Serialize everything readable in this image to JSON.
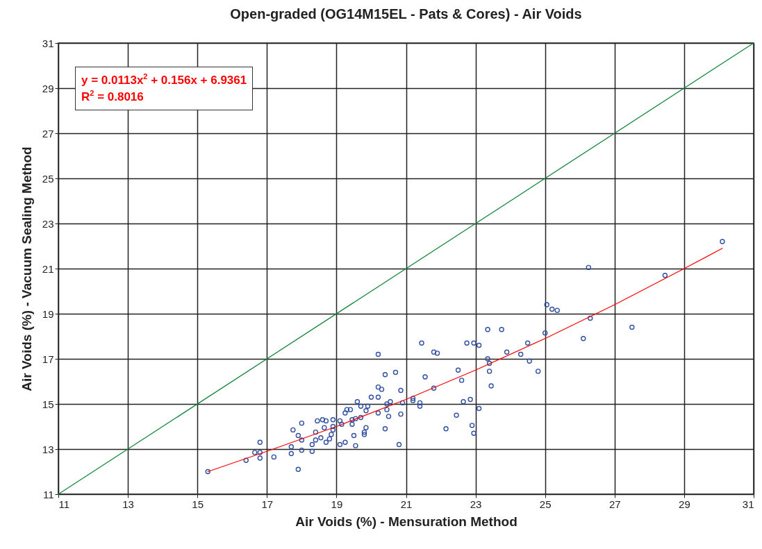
{
  "chart_data": {
    "type": "scatter",
    "title": "Open-graded (OG14M15EL - Pats & Cores) - Air Voids",
    "xlabel": "Air Voids (%) - Mensuration Method",
    "ylabel": "Air Voids (%) - Vacuum Sealing Method",
    "xlim": [
      11,
      31
    ],
    "xticks": [
      11,
      13,
      15,
      17,
      19,
      21,
      23,
      25,
      27,
      29,
      31
    ],
    "ylim": [
      11,
      31
    ],
    "yticks": [
      11,
      13,
      15,
      17,
      19,
      21,
      23,
      25,
      27,
      29,
      31
    ],
    "grid": true,
    "legend": false,
    "annotations": [
      "y = 0.0113x$^{2}$ + 0.156x + 6.9361",
      "R$^{2}$ = 0.8016"
    ],
    "series": [
      {
        "marker": "circle",
        "color": "#2f4fa0",
        "x": [
          15.3,
          16.4,
          16.65,
          16.8,
          16.8,
          16.8,
          17.2,
          17.7,
          17.7,
          17.9,
          17.75,
          18.0,
          17.9,
          18.0,
          18.0,
          18.3,
          18.3,
          18.4,
          18.4,
          18.45,
          18.55,
          18.6,
          18.65,
          18.7,
          18.7,
          18.8,
          18.85,
          18.9,
          18.9,
          18.9,
          19.1,
          19.1,
          19.15,
          19.25,
          19.25,
          19.3,
          19.4,
          19.45,
          19.5,
          19.55,
          19.45,
          19.55,
          19.6,
          19.7,
          19.7,
          19.85,
          19.8,
          19.8,
          19.85,
          19.9,
          20.0,
          20.2,
          20.2,
          20.2,
          20.2,
          20.3,
          20.4,
          20.45,
          20.45,
          20.55,
          20.7,
          20.85,
          20.85,
          20.9,
          20.8,
          20.4,
          20.5,
          21.2,
          21.2,
          21.4,
          21.4,
          21.45,
          21.8,
          21.9,
          21.55,
          21.8,
          22.15,
          22.45,
          22.6,
          22.5,
          22.65,
          22.75,
          22.85,
          22.9,
          22.95,
          23.1,
          22.95,
          23.1,
          23.35,
          23.35,
          23.4,
          23.4,
          23.45,
          23.75,
          23.9,
          24.3,
          24.5,
          24.55,
          24.8,
          25.0,
          25.05,
          25.2,
          25.35,
          26.1,
          26.25,
          26.3,
          27.5,
          28.45,
          30.1
        ],
        "values": [
          12.0,
          12.5,
          12.85,
          13.3,
          12.85,
          12.6,
          12.65,
          12.8,
          13.1,
          12.1,
          13.85,
          14.15,
          13.6,
          13.4,
          12.95,
          12.9,
          13.2,
          13.4,
          13.75,
          14.25,
          13.5,
          14.3,
          13.95,
          13.3,
          14.25,
          13.45,
          13.65,
          14.3,
          14.0,
          13.85,
          13.2,
          14.25,
          14.1,
          13.3,
          14.6,
          14.75,
          14.75,
          14.3,
          13.6,
          13.15,
          14.1,
          14.35,
          15.1,
          14.9,
          14.4,
          13.95,
          13.75,
          13.65,
          14.7,
          14.9,
          15.3,
          15.3,
          14.6,
          17.2,
          15.75,
          15.65,
          16.3,
          15.0,
          14.75,
          15.1,
          16.4,
          15.6,
          14.55,
          15.05,
          13.2,
          13.9,
          14.45,
          15.25,
          15.15,
          15.05,
          14.9,
          17.7,
          17.3,
          17.25,
          16.2,
          15.7,
          13.9,
          14.5,
          16.05,
          16.5,
          15.1,
          17.7,
          15.2,
          14.05,
          13.7,
          14.8,
          17.7,
          17.6,
          18.3,
          17.0,
          16.45,
          16.8,
          15.8,
          18.3,
          17.3,
          17.2,
          17.7,
          16.9,
          16.45,
          18.15,
          19.4,
          19.2,
          19.15,
          17.9,
          21.05,
          18.8,
          18.4,
          20.7,
          22.2
        ]
      },
      {
        "type": "line",
        "color": "#ff0000",
        "x": [
          15.3,
          17,
          19,
          21,
          23,
          25,
          27,
          29,
          30.1
        ],
        "values": [
          12.0,
          12.9,
          14.0,
          15.2,
          16.5,
          17.9,
          19.4,
          21.0,
          21.9
        ]
      },
      {
        "type": "line",
        "color": "#14863c",
        "x": [
          11,
          31
        ],
        "values": [
          11,
          31
        ]
      }
    ]
  }
}
